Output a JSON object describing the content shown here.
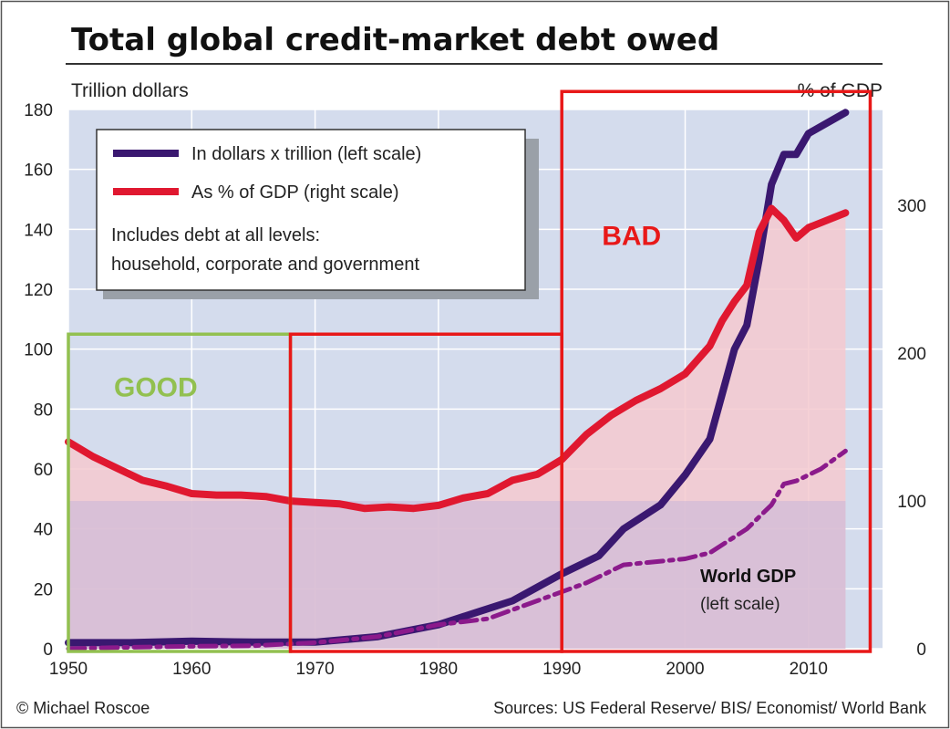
{
  "chart_data": {
    "type": "line",
    "title": "Total global credit-market debt owed",
    "ylabel_left": "Trillion dollars",
    "ylabel_right": "% of GDP",
    "xlim": [
      1950,
      2016
    ],
    "ylim_left": [
      0,
      180
    ],
    "ylim_right": [
      0,
      365
    ],
    "x_ticks": [
      1950,
      1960,
      1970,
      1980,
      1990,
      2000,
      2010
    ],
    "y_ticks_left": [
      0,
      20,
      40,
      60,
      80,
      100,
      120,
      140,
      160,
      180
    ],
    "y_ticks_right": [
      0,
      100,
      200,
      300
    ],
    "grid": true,
    "legend_position": "top-left",
    "legend": {
      "items": [
        {
          "label": "In dollars x trillion (left scale)",
          "color": "#3a1870"
        },
        {
          "label": "As % of GDP (right scale)",
          "color": "#e01830"
        }
      ],
      "note_line1": "Includes debt at all levels:",
      "note_line2": "household, corporate and government"
    },
    "series": [
      {
        "key": "debt_dollars",
        "axis": "left",
        "color": "#3a1870",
        "points": [
          [
            1950,
            2
          ],
          [
            1955,
            2
          ],
          [
            1960,
            2.5
          ],
          [
            1965,
            2.2
          ],
          [
            1970,
            2.2
          ],
          [
            1975,
            4
          ],
          [
            1980,
            8
          ],
          [
            1983,
            12
          ],
          [
            1986,
            16
          ],
          [
            1990,
            25
          ],
          [
            1993,
            31
          ],
          [
            1995,
            40
          ],
          [
            1998,
            48
          ],
          [
            2000,
            58
          ],
          [
            2002,
            70
          ],
          [
            2004,
            100
          ],
          [
            2005,
            108
          ],
          [
            2006,
            130
          ],
          [
            2007,
            155
          ],
          [
            2008,
            165
          ],
          [
            2009,
            165
          ],
          [
            2010,
            172
          ],
          [
            2013,
            179
          ]
        ]
      },
      {
        "key": "debt_pct_gdp",
        "axis": "right",
        "color": "#e01830",
        "points": [
          [
            1950,
            140
          ],
          [
            1952,
            130
          ],
          [
            1954,
            122
          ],
          [
            1956,
            114
          ],
          [
            1958,
            110
          ],
          [
            1960,
            105
          ],
          [
            1962,
            104
          ],
          [
            1964,
            104
          ],
          [
            1966,
            103
          ],
          [
            1968,
            100
          ],
          [
            1970,
            99
          ],
          [
            1972,
            98
          ],
          [
            1974,
            95
          ],
          [
            1976,
            96
          ],
          [
            1978,
            95
          ],
          [
            1980,
            97
          ],
          [
            1982,
            102
          ],
          [
            1984,
            105
          ],
          [
            1986,
            114
          ],
          [
            1988,
            118
          ],
          [
            1990,
            128
          ],
          [
            1992,
            145
          ],
          [
            1994,
            158
          ],
          [
            1996,
            168
          ],
          [
            1998,
            176
          ],
          [
            2000,
            186
          ],
          [
            2002,
            205
          ],
          [
            2003,
            222
          ],
          [
            2004,
            235
          ],
          [
            2005,
            246
          ],
          [
            2006,
            282
          ],
          [
            2007,
            298
          ],
          [
            2008,
            290
          ],
          [
            2009,
            278
          ],
          [
            2010,
            285
          ],
          [
            2013,
            295
          ]
        ]
      },
      {
        "key": "world_gdp",
        "axis": "left",
        "color": "#8b1a8b",
        "dash": "dashdot",
        "points": [
          [
            1950,
            0
          ],
          [
            1955,
            0.5
          ],
          [
            1960,
            0.8
          ],
          [
            1965,
            1
          ],
          [
            1970,
            2
          ],
          [
            1975,
            4
          ],
          [
            1980,
            8
          ],
          [
            1984,
            10
          ],
          [
            1988,
            16
          ],
          [
            1992,
            22
          ],
          [
            1995,
            28
          ],
          [
            2000,
            30
          ],
          [
            2002,
            32
          ],
          [
            2005,
            40
          ],
          [
            2007,
            48
          ],
          [
            2008,
            55
          ],
          [
            2009,
            56
          ],
          [
            2011,
            60
          ],
          [
            2013,
            66
          ]
        ]
      }
    ],
    "annotations": {
      "world_gdp_label": "World GDP",
      "world_gdp_sublabel": "(left scale)"
    }
  },
  "overlays": [
    {
      "label": "GOOD",
      "color": "#92c050",
      "x_range": [
        1950,
        1968
      ],
      "y_top_left": 105
    },
    {
      "label": "",
      "color": "#e81818",
      "x_range": [
        1968,
        1990
      ],
      "y_top_left": 105
    },
    {
      "label": "BAD",
      "color": "#e81818",
      "x_range": [
        1990,
        2015
      ],
      "y_top_left": 186
    }
  ],
  "footer": {
    "credit": "© Michael Roscoe",
    "sources": "Sources: US Federal Reserve/ BIS/ Economist/ World Bank"
  }
}
